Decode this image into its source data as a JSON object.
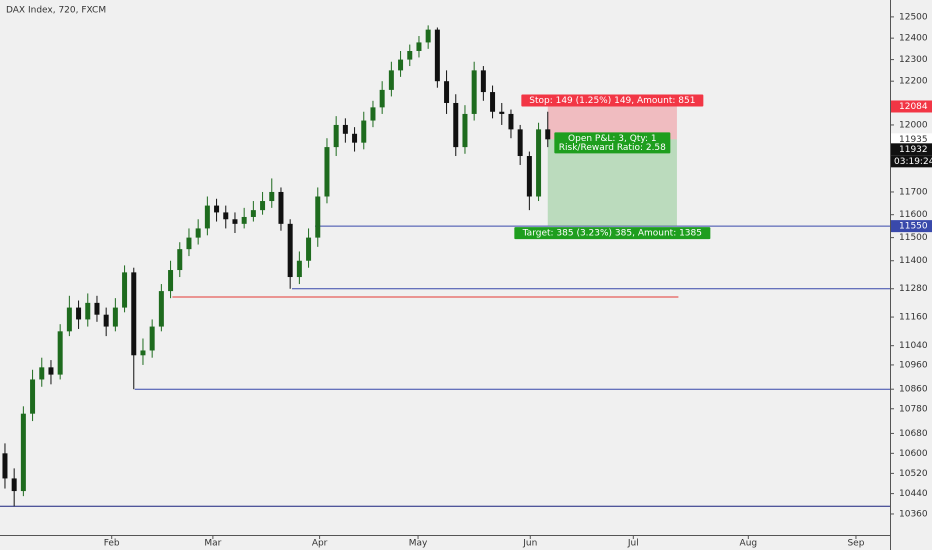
{
  "chart_data": {
    "type": "candlestick",
    "title": "DAX Index, 720, FXCM",
    "log_scale": true,
    "up_color": "#1e6b1e",
    "down_color": "#111111",
    "x": [
      0,
      1,
      2,
      3,
      4,
      5,
      6,
      7,
      8,
      9,
      10,
      11,
      12,
      13,
      14,
      15,
      16,
      17,
      18,
      19,
      20,
      21,
      22,
      23,
      24,
      25,
      26,
      27,
      28,
      29,
      30,
      31,
      32,
      33,
      34,
      35,
      36,
      37,
      38,
      39,
      40,
      41,
      42,
      43,
      44,
      45,
      46,
      47,
      48,
      49,
      50,
      51,
      52,
      53,
      54,
      55,
      56,
      57,
      58,
      59
    ],
    "open": [
      10600,
      10500,
      10450,
      10760,
      10900,
      10950,
      10920,
      11100,
      11200,
      11150,
      11220,
      11170,
      11120,
      11200,
      11350,
      11000,
      11020,
      11120,
      11270,
      11360,
      11450,
      11500,
      11540,
      11640,
      11610,
      11580,
      11560,
      11590,
      11620,
      11660,
      11700,
      11560,
      11330,
      11400,
      11500,
      11680,
      11900,
      12000,
      11960,
      11920,
      12020,
      12080,
      12160,
      12250,
      12300,
      12340,
      12380,
      12440,
      12200,
      12100,
      11900,
      12050,
      12250,
      12150,
      12060,
      12050,
      11980,
      11860,
      11680,
      11980
    ],
    "high": [
      10640,
      10540,
      10790,
      10940,
      10990,
      10980,
      11130,
      11250,
      11230,
      11260,
      11250,
      11200,
      11240,
      11380,
      11370,
      11070,
      11150,
      11300,
      11400,
      11480,
      11540,
      11580,
      11680,
      11670,
      11640,
      11610,
      11630,
      11660,
      11700,
      11760,
      11720,
      11580,
      11440,
      11540,
      11720,
      11940,
      12040,
      12030,
      11990,
      12060,
      12110,
      12200,
      12290,
      12340,
      12370,
      12410,
      12460,
      12450,
      12250,
      12140,
      12090,
      12290,
      12270,
      12180,
      12100,
      12070,
      12000,
      11880,
      12010,
      12060
    ],
    "low": [
      10460,
      10390,
      10430,
      10730,
      10870,
      10880,
      10900,
      11080,
      11110,
      11120,
      11140,
      11080,
      11100,
      11180,
      10860,
      10960,
      10990,
      11100,
      11240,
      11330,
      11420,
      11470,
      11510,
      11570,
      11540,
      11520,
      11540,
      11570,
      11600,
      11630,
      11530,
      11280,
      11300,
      11370,
      11460,
      11650,
      11860,
      11920,
      11880,
      11890,
      11990,
      12050,
      12130,
      12220,
      12270,
      12310,
      12350,
      12170,
      12050,
      11860,
      11870,
      12020,
      12110,
      12030,
      12000,
      11940,
      11820,
      11620,
      11660,
      11900
    ],
    "close": [
      10500,
      10450,
      10760,
      10900,
      10950,
      10920,
      11100,
      11200,
      11150,
      11220,
      11170,
      11120,
      11200,
      11350,
      11000,
      11020,
      11120,
      11270,
      11360,
      11450,
      11500,
      11540,
      11640,
      11610,
      11580,
      11560,
      11590,
      11620,
      11660,
      11700,
      11560,
      11330,
      11400,
      11500,
      11680,
      11900,
      12000,
      11960,
      11920,
      12020,
      12080,
      12160,
      12250,
      12300,
      12340,
      12380,
      12440,
      12200,
      12100,
      11900,
      12050,
      12250,
      12150,
      12060,
      12050,
      11980,
      11860,
      11680,
      11980,
      11935
    ],
    "xlim": [
      -0.54,
      96.2
    ],
    "xticks": [
      {
        "value": 11.6,
        "label": "Feb"
      },
      {
        "value": 22.6,
        "label": "Mar"
      },
      {
        "value": 34.2,
        "label": "Apr"
      },
      {
        "value": 44.9,
        "label": "May"
      },
      {
        "value": 57.1,
        "label": "Jun"
      },
      {
        "value": 68.3,
        "label": "Jul"
      },
      {
        "value": 80.8,
        "label": "Aug"
      },
      {
        "value": 92.5,
        "label": "Sep"
      }
    ],
    "ylim": [
      10278,
      12580
    ],
    "yticks": [
      12500,
      12400,
      12300,
      12200,
      12000,
      11700,
      11600,
      11500,
      11400,
      11280,
      11160,
      11040,
      10960,
      10860,
      10780,
      10680,
      10600,
      10520,
      10440,
      10360
    ],
    "lines": [
      {
        "value": 11550,
        "start": 33.7,
        "color": "#3949ab"
      },
      {
        "value": 11280,
        "start": 31.2,
        "color": "#3949ab"
      },
      {
        "value": 10860,
        "start": 14.1,
        "color": "#3949ab"
      },
      {
        "value": 10390,
        "start": -0.54,
        "color": "#1a237e"
      },
      {
        "value": 11245,
        "start": 18.2,
        "end": 73.2,
        "color": "#e53935"
      }
    ],
    "position": {
      "entry": 11935,
      "stop": 12084,
      "target": 11550,
      "start": 59,
      "end": 73.04,
      "stop_label": "Stop: 149 (1.25%) 149, Amount: 851",
      "pnl_label": "Open P&L: 3, Qty: 1",
      "rr_label": "Risk/Reward Ratio: 2.58",
      "target_label": "Target: 385 (3.23%) 385, Amount: 1385"
    },
    "price_tags": [
      {
        "value": 12084,
        "color": "#f23645",
        "text_color": "#ffffff"
      },
      {
        "value": 11935,
        "color": "#ffffff",
        "text_color": "#333333"
      },
      {
        "value": 11932,
        "color": "#111111",
        "text_color": "#ffffff"
      },
      {
        "value": 11550,
        "color": "#3949ab",
        "text_color": "#ffffff"
      }
    ],
    "countdown": "03:19:24"
  }
}
